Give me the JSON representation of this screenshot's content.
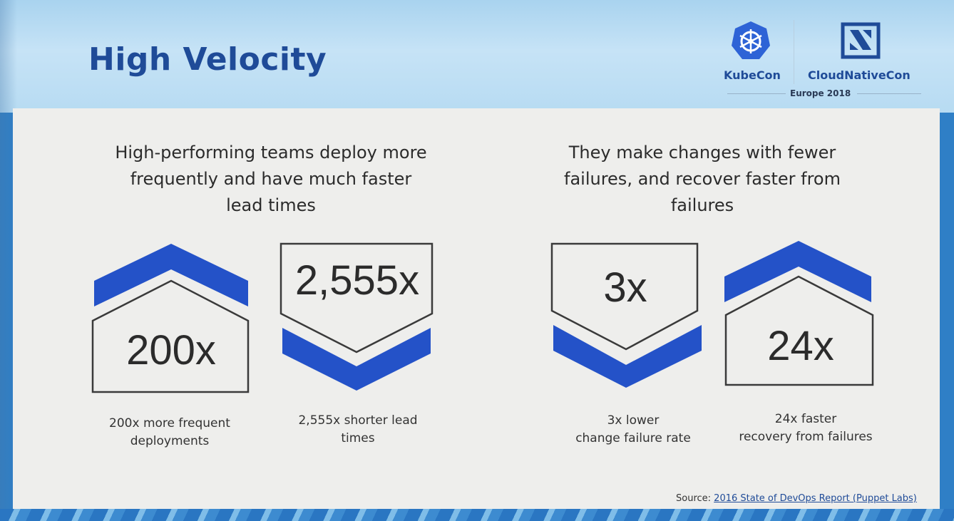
{
  "slide": {
    "title": "High Velocity",
    "logos": {
      "kubecon": "KubeCon",
      "cloudnativecon": "CloudNativeCon",
      "event": "Europe 2018",
      "kubecon_icon": "kubernetes-helm-icon",
      "cloudnativecon_icon": "cncf-square-icon"
    },
    "left_heading": "High-performing teams deploy more frequently and have much faster lead times",
    "right_heading": "They make changes with fewer failures, and recover faster from failures",
    "stats": [
      {
        "value": "200x",
        "caption_line1": "200x more frequent",
        "caption_line2": "deployments",
        "shape": "up-arrow"
      },
      {
        "value": "2,555x",
        "caption_line1": "2,555x shorter lead",
        "caption_line2": "times",
        "shape": "down-arrow"
      },
      {
        "value": "3x",
        "caption_line1": "3x lower",
        "caption_line2": "change failure rate",
        "shape": "down-arrow"
      },
      {
        "value": "24x",
        "caption_line1": "24x faster",
        "caption_line2": "recovery from failures",
        "shape": "up-arrow"
      }
    ],
    "source_label": "Source:",
    "source_text": "2016 State of DevOps Report (Puppet Labs)",
    "colors": {
      "accent": "#2452c8",
      "title": "#1f4b98",
      "panel": "#eeeeec",
      "outline": "#3a3a3a"
    }
  }
}
